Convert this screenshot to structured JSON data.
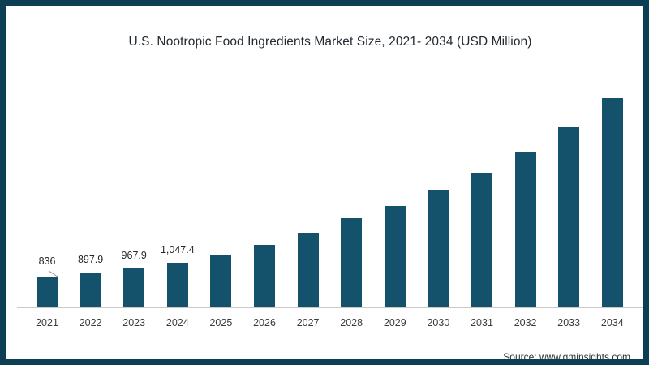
{
  "title": "U.S. Nootropic Food Ingredients Market Size, 2021- 2034 (USD Million)",
  "source": "Source: www.gminsights.com",
  "colors": {
    "bar": "#14526b",
    "frame_border": "#0d3e54",
    "axis_line": "#c9c9c9",
    "title_text": "#232a31",
    "label_text": "#262626",
    "leader_line": "#8a8a8a"
  },
  "chart_data": {
    "type": "bar",
    "title": "U.S. Nootropic Food Ingredients Market Size, 2021- 2034 (USD Million)",
    "unit": "USD Million",
    "xlabel": "",
    "ylabel": "",
    "categories": [
      "2021",
      "2022",
      "2023",
      "2024",
      "2025",
      "2026",
      "2027",
      "2028",
      "2029",
      "2030",
      "2031",
      "2032",
      "2033",
      "2034"
    ],
    "values": [
      836,
      897.9,
      967.9,
      1047.4,
      1160,
      1300,
      1475,
      1685,
      1865,
      2095,
      2345,
      2645,
      3005,
      3415
    ],
    "data_labels": [
      "836",
      "897.9",
      "967.9",
      "1,047.4",
      "",
      "",
      "",
      "",
      "",
      "",
      "",
      "",
      "",
      ""
    ],
    "ylim": [
      400,
      3500
    ],
    "grid": false,
    "legend": "none",
    "bar_color": "#14526b",
    "axis_line_color": "#c9c9c9"
  }
}
